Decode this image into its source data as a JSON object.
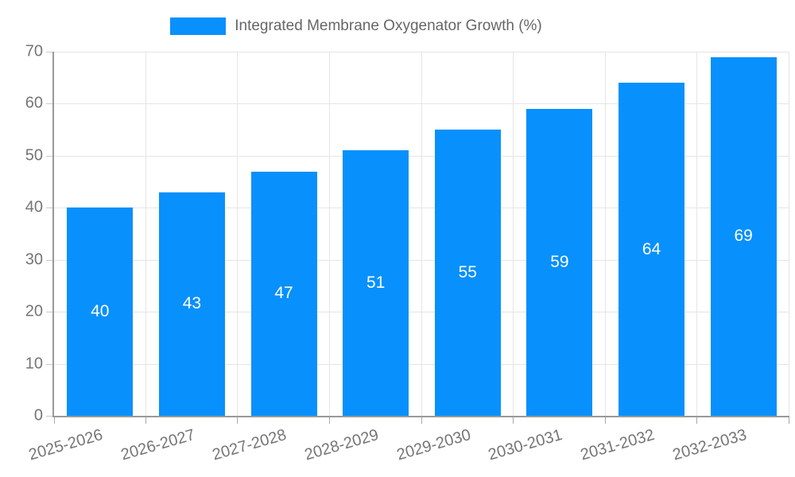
{
  "chart_data": {
    "type": "bar",
    "title": "Integrated Membrane Oxygenator Growth (%)",
    "categories": [
      "2025-2026",
      "2026-2027",
      "2027-2028",
      "2028-2029",
      "2029-2030",
      "2030-2031",
      "2031-2032",
      "2032-2033"
    ],
    "values": [
      40,
      43,
      47,
      51,
      55,
      59,
      64,
      69
    ],
    "xlabel": "",
    "ylabel": "",
    "ylim": [
      0,
      70
    ],
    "yticks": [
      0,
      10,
      20,
      30,
      40,
      50,
      60,
      70
    ],
    "grid": true,
    "legend_position": "top",
    "bar_labels_shown": true
  },
  "colors": {
    "bar": "#0890FC",
    "bar_label": "#ffffff",
    "axis_line": "#999999",
    "gridline": "#e5e5e5",
    "tick_label": "#757575",
    "legend_text": "#666666",
    "background": "#ffffff"
  }
}
